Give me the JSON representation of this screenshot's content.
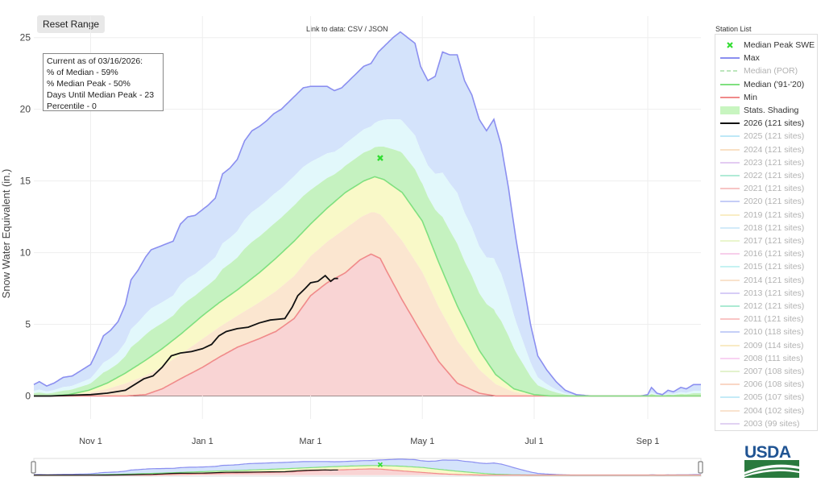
{
  "ui": {
    "reset_label": "Reset Range",
    "link_text": "Link to data: CSV / JSON",
    "station_list_title": "Station List",
    "logo_text": "USDA"
  },
  "annotation": {
    "lines": [
      "Current as of 03/16/2026:",
      "% of Median - 59%",
      "% Median Peak - 50%",
      "Days Until Median Peak - 23",
      "Percentile - 0"
    ]
  },
  "legend": [
    {
      "label": "Median Peak SWE",
      "kind": "marker",
      "color": "#33dd33",
      "active": true
    },
    {
      "label": "Max",
      "kind": "line",
      "color": "#8b8ff0",
      "active": true
    },
    {
      "label": "Median (POR)",
      "kind": "dash",
      "color": "#7ccf7c",
      "active": false
    },
    {
      "label": "Median ('91-'20)",
      "kind": "line",
      "color": "#7fe07f",
      "active": true
    },
    {
      "label": "Min",
      "kind": "line",
      "color": "#f08a8a",
      "active": true
    },
    {
      "label": "Stats. Shading",
      "kind": "fill",
      "color": "#c8f5c0",
      "active": true
    },
    {
      "label": "2026 (121 sites)",
      "kind": "line",
      "color": "#111111",
      "active": true
    },
    {
      "label": "2025 (121 sites)",
      "kind": "line",
      "color": "#7fd3f0",
      "active": false
    },
    {
      "label": "2024 (121 sites)",
      "kind": "line",
      "color": "#f5c28c",
      "active": false
    },
    {
      "label": "2023 (121 sites)",
      "kind": "line",
      "color": "#c99be6",
      "active": false
    },
    {
      "label": "2022 (121 sites)",
      "kind": "line",
      "color": "#66d9b0",
      "active": false
    },
    {
      "label": "2021 (121 sites)",
      "kind": "line",
      "color": "#f08c8c",
      "active": false
    },
    {
      "label": "2020 (121 sites)",
      "kind": "line",
      "color": "#8c9cf0",
      "active": false
    },
    {
      "label": "2019 (121 sites)",
      "kind": "line",
      "color": "#f5dc8c",
      "active": false
    },
    {
      "label": "2018 (121 sites)",
      "kind": "line",
      "color": "#a9d8f5",
      "active": false
    },
    {
      "label": "2017 (121 sites)",
      "kind": "line",
      "color": "#d6ed9c",
      "active": false
    },
    {
      "label": "2016 (121 sites)",
      "kind": "line",
      "color": "#f0a0d8",
      "active": false
    },
    {
      "label": "2015 (121 sites)",
      "kind": "line",
      "color": "#8ce6e6",
      "active": false
    },
    {
      "label": "2014 (121 sites)",
      "kind": "line",
      "color": "#f5c89c",
      "active": false
    },
    {
      "label": "2013 (121 sites)",
      "kind": "line",
      "color": "#b09cf0",
      "active": false
    },
    {
      "label": "2012 (121 sites)",
      "kind": "line",
      "color": "#5cd6a8",
      "active": false
    },
    {
      "label": "2011 (121 sites)",
      "kind": "line",
      "color": "#f58c8c",
      "active": false
    },
    {
      "label": "2010 (118 sites)",
      "kind": "line",
      "color": "#8ca0f0",
      "active": false
    },
    {
      "label": "2009 (114 sites)",
      "kind": "line",
      "color": "#f5d88c",
      "active": false
    },
    {
      "label": "2008 (111 sites)",
      "kind": "line",
      "color": "#f5a8e6",
      "active": false
    },
    {
      "label": "2007 (108 sites)",
      "kind": "line",
      "color": "#c8e69c",
      "active": false
    },
    {
      "label": "2006 (108 sites)",
      "kind": "line",
      "color": "#f5b08c",
      "active": false
    },
    {
      "label": "2005 (107 sites)",
      "kind": "line",
      "color": "#8cd8f0",
      "active": false
    },
    {
      "label": "2004 (102 sites)",
      "kind": "line",
      "color": "#f5c8a0",
      "active": false
    },
    {
      "label": "2003 (99 sites)",
      "kind": "line",
      "color": "#c4a6e6",
      "active": false
    }
  ],
  "chart_data": {
    "type": "area",
    "ylabel": "Snow Water Equivalent (in.)",
    "y_ticks": [
      0,
      5,
      10,
      15,
      20,
      25
    ],
    "ylim": [
      -1.6,
      26.5
    ],
    "x_ticks": [
      {
        "date": "2025-11-01",
        "label": "Nov 1"
      },
      {
        "date": "2026-01-01",
        "label": "Jan 1"
      },
      {
        "date": "2026-03-01",
        "label": "Mar 1"
      },
      {
        "date": "2026-05-01",
        "label": "May 1"
      },
      {
        "date": "2026-07-01",
        "label": "Jul 1"
      },
      {
        "date": "2026-09-01",
        "label": "Sep 1"
      }
    ],
    "xlim": [
      "2025-10-01",
      "2026-09-30"
    ],
    "grid": true,
    "colors": {
      "max_fill": "#d4e3fb",
      "high_fill": "#e2f8fb",
      "upper_mid_fill": "#c5f2c0",
      "lower_mid_fill": "#f9f9c8",
      "low_fill": "#f9d4d4",
      "max_line": "#8b8ff0",
      "median_line": "#7fe07f",
      "min_line": "#f08a8a",
      "current_line": "#111111",
      "peak_marker": "#33dd33"
    },
    "median_peak": {
      "date": "2026-04-08",
      "value": 16.6
    },
    "series": [
      {
        "name": "Max",
        "points": [
          [
            "2025-10-01",
            0.8
          ],
          [
            "2025-10-04",
            1.0
          ],
          [
            "2025-10-08",
            0.7
          ],
          [
            "2025-10-12",
            0.9
          ],
          [
            "2025-10-17",
            1.3
          ],
          [
            "2025-10-22",
            1.4
          ],
          [
            "2025-10-27",
            1.8
          ],
          [
            "2025-11-01",
            2.2
          ],
          [
            "2025-11-04",
            3.0
          ],
          [
            "2025-11-08",
            4.2
          ],
          [
            "2025-11-12",
            4.6
          ],
          [
            "2025-11-16",
            5.2
          ],
          [
            "2025-11-20",
            6.4
          ],
          [
            "2025-11-23",
            8.1
          ],
          [
            "2025-11-27",
            8.8
          ],
          [
            "2025-12-01",
            9.7
          ],
          [
            "2025-12-04",
            10.2
          ],
          [
            "2025-12-08",
            10.4
          ],
          [
            "2025-12-12",
            10.6
          ],
          [
            "2025-12-16",
            10.8
          ],
          [
            "2025-12-20",
            12.0
          ],
          [
            "2025-12-24",
            12.5
          ],
          [
            "2025-12-28",
            12.6
          ],
          [
            "2026-01-01",
            13.0
          ],
          [
            "2026-01-04",
            13.3
          ],
          [
            "2026-01-08",
            13.8
          ],
          [
            "2026-01-12",
            15.5
          ],
          [
            "2026-01-16",
            15.9
          ],
          [
            "2026-01-20",
            16.5
          ],
          [
            "2026-01-24",
            17.8
          ],
          [
            "2026-01-28",
            18.5
          ],
          [
            "2026-02-01",
            18.8
          ],
          [
            "2026-02-05",
            19.2
          ],
          [
            "2026-02-09",
            19.7
          ],
          [
            "2026-02-13",
            20.0
          ],
          [
            "2026-02-17",
            20.5
          ],
          [
            "2026-02-21",
            21.0
          ],
          [
            "2026-02-25",
            21.5
          ],
          [
            "2026-03-01",
            21.6
          ],
          [
            "2026-03-05",
            21.6
          ],
          [
            "2026-03-10",
            21.6
          ],
          [
            "2026-03-14",
            21.3
          ],
          [
            "2026-03-18",
            21.5
          ],
          [
            "2026-03-22",
            22.0
          ],
          [
            "2026-03-26",
            22.5
          ],
          [
            "2026-03-30",
            23.0
          ],
          [
            "2026-04-03",
            23.2
          ],
          [
            "2026-04-07",
            24.0
          ],
          [
            "2026-04-11",
            24.5
          ],
          [
            "2026-04-15",
            25.0
          ],
          [
            "2026-04-19",
            25.4
          ],
          [
            "2026-04-23",
            25.0
          ],
          [
            "2026-04-27",
            24.6
          ],
          [
            "2026-04-30",
            23.0
          ],
          [
            "2026-05-04",
            22.0
          ],
          [
            "2026-05-08",
            22.3
          ],
          [
            "2026-05-12",
            24.0
          ],
          [
            "2026-05-16",
            23.8
          ],
          [
            "2026-05-20",
            23.8
          ],
          [
            "2026-05-24",
            22.0
          ],
          [
            "2026-05-28",
            21.0
          ],
          [
            "2026-06-01",
            19.3
          ],
          [
            "2026-06-05",
            18.5
          ],
          [
            "2026-06-09",
            19.3
          ],
          [
            "2026-06-13",
            17.5
          ],
          [
            "2026-06-17",
            14.5
          ],
          [
            "2026-06-21",
            11.0
          ],
          [
            "2026-06-25",
            8.0
          ],
          [
            "2026-06-29",
            5.0
          ],
          [
            "2026-07-03",
            2.8
          ],
          [
            "2026-07-08",
            1.8
          ],
          [
            "2026-07-13",
            1.0
          ],
          [
            "2026-07-18",
            0.4
          ],
          [
            "2026-07-24",
            0.1
          ],
          [
            "2026-08-01",
            0.0
          ],
          [
            "2026-08-10",
            0.0
          ],
          [
            "2026-08-20",
            0.0
          ],
          [
            "2026-08-28",
            0.0
          ],
          [
            "2026-09-01",
            0.1
          ],
          [
            "2026-09-03",
            0.6
          ],
          [
            "2026-09-06",
            0.2
          ],
          [
            "2026-09-09",
            0.1
          ],
          [
            "2026-09-12",
            0.4
          ],
          [
            "2026-09-15",
            0.3
          ],
          [
            "2026-09-19",
            0.6
          ],
          [
            "2026-09-22",
            0.5
          ],
          [
            "2026-09-26",
            0.8
          ],
          [
            "2026-09-30",
            0.8
          ]
        ]
      },
      {
        "name": "Median ('91-'20)",
        "points": [
          [
            "2025-10-01",
            0.0
          ],
          [
            "2025-10-10",
            0.0
          ],
          [
            "2025-10-20",
            0.1
          ],
          [
            "2025-10-31",
            0.4
          ],
          [
            "2025-11-10",
            0.9
          ],
          [
            "2025-11-20",
            1.6
          ],
          [
            "2025-12-01",
            2.5
          ],
          [
            "2025-12-10",
            3.3
          ],
          [
            "2025-12-20",
            4.3
          ],
          [
            "2026-01-01",
            5.6
          ],
          [
            "2026-01-10",
            6.5
          ],
          [
            "2026-01-20",
            7.4
          ],
          [
            "2026-02-01",
            8.6
          ],
          [
            "2026-02-10",
            9.6
          ],
          [
            "2026-02-20",
            10.8
          ],
          [
            "2026-03-01",
            12.0
          ],
          [
            "2026-03-10",
            13.1
          ],
          [
            "2026-03-20",
            14.2
          ],
          [
            "2026-03-30",
            15.0
          ],
          [
            "2026-04-05",
            15.3
          ],
          [
            "2026-04-10",
            15.1
          ],
          [
            "2026-04-20",
            14.2
          ],
          [
            "2026-05-01",
            12.2
          ],
          [
            "2026-05-10",
            9.3
          ],
          [
            "2026-05-20",
            6.3
          ],
          [
            "2026-06-01",
            3.2
          ],
          [
            "2026-06-10",
            1.5
          ],
          [
            "2026-06-20",
            0.5
          ],
          [
            "2026-07-01",
            0.1
          ],
          [
            "2026-07-10",
            0.0
          ],
          [
            "2026-08-01",
            0.0
          ],
          [
            "2026-09-30",
            0.0
          ]
        ]
      },
      {
        "name": "Min",
        "points": [
          [
            "2025-10-01",
            0.0
          ],
          [
            "2025-11-01",
            0.0
          ],
          [
            "2025-11-20",
            0.0
          ],
          [
            "2025-12-01",
            0.1
          ],
          [
            "2025-12-10",
            0.5
          ],
          [
            "2025-12-20",
            1.2
          ],
          [
            "2026-01-01",
            2.0
          ],
          [
            "2026-01-10",
            2.7
          ],
          [
            "2026-01-20",
            3.4
          ],
          [
            "2026-02-01",
            4.0
          ],
          [
            "2026-02-10",
            4.5
          ],
          [
            "2026-02-20",
            5.4
          ],
          [
            "2026-03-01",
            7.0
          ],
          [
            "2026-03-10",
            7.9
          ],
          [
            "2026-03-20",
            8.6
          ],
          [
            "2026-03-28",
            9.5
          ],
          [
            "2026-04-03",
            9.9
          ],
          [
            "2026-04-08",
            9.6
          ],
          [
            "2026-04-12",
            8.6
          ],
          [
            "2026-04-20",
            6.7
          ],
          [
            "2026-05-01",
            4.3
          ],
          [
            "2026-05-10",
            2.4
          ],
          [
            "2026-05-20",
            0.9
          ],
          [
            "2026-06-01",
            0.2
          ],
          [
            "2026-06-10",
            0.0
          ],
          [
            "2026-09-30",
            0.0
          ]
        ]
      },
      {
        "name": "2026 (121 sites)",
        "points": [
          [
            "2025-10-01",
            0.0
          ],
          [
            "2025-10-10",
            0.0
          ],
          [
            "2025-10-20",
            0.05
          ],
          [
            "2025-11-01",
            0.1
          ],
          [
            "2025-11-10",
            0.2
          ],
          [
            "2025-11-20",
            0.4
          ],
          [
            "2025-11-30",
            1.2
          ],
          [
            "2025-12-05",
            1.4
          ],
          [
            "2025-12-10",
            2.0
          ],
          [
            "2025-12-15",
            2.8
          ],
          [
            "2025-12-20",
            3.0
          ],
          [
            "2025-12-26",
            3.1
          ],
          [
            "2026-01-01",
            3.3
          ],
          [
            "2026-01-06",
            3.6
          ],
          [
            "2026-01-10",
            4.2
          ],
          [
            "2026-01-14",
            4.5
          ],
          [
            "2026-01-20",
            4.7
          ],
          [
            "2026-01-26",
            4.8
          ],
          [
            "2026-02-01",
            5.1
          ],
          [
            "2026-02-07",
            5.3
          ],
          [
            "2026-02-15",
            5.4
          ],
          [
            "2026-02-19",
            6.2
          ],
          [
            "2026-02-22",
            7.0
          ],
          [
            "2026-02-26",
            7.5
          ],
          [
            "2026-03-01",
            7.9
          ],
          [
            "2026-03-05",
            8.0
          ],
          [
            "2026-03-09",
            8.4
          ],
          [
            "2026-03-12",
            8.0
          ],
          [
            "2026-03-14",
            8.2
          ],
          [
            "2026-03-16",
            8.2
          ]
        ]
      }
    ]
  }
}
